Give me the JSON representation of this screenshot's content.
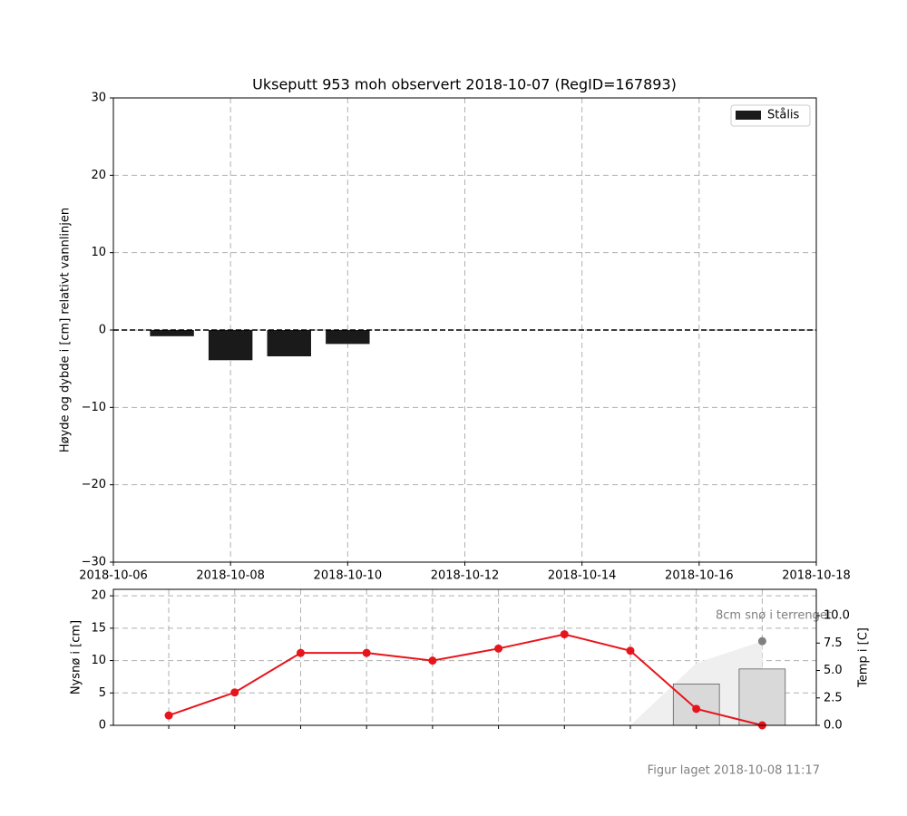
{
  "chart_data": [
    {
      "type": "bar",
      "title": "Ukseputt 953 moh observert 2018-10-07 (RegID=167893)",
      "ylabel": "Høyde og dybde i [cm] relativt vannlinjen",
      "x": [
        "2018-10-07",
        "2018-10-08",
        "2018-10-09",
        "2018-10-10"
      ],
      "xlim": [
        "2018-10-06",
        "2018-10-18"
      ],
      "xticks": [
        "2018-10-06",
        "2018-10-08",
        "2018-10-10",
        "2018-10-12",
        "2018-10-14",
        "2018-10-16",
        "2018-10-18"
      ],
      "ylim": [
        -30,
        30
      ],
      "yticks": [
        {
          "value": -30,
          "label": "−30"
        },
        {
          "value": -20,
          "label": "−20"
        },
        {
          "value": -10,
          "label": "−10"
        },
        0,
        10,
        20,
        30
      ],
      "grid": true,
      "legend": "upper right",
      "series": [
        {
          "name": "Stålis",
          "color": "#1a1a1a",
          "values": [
            -0.8,
            -3.9,
            -3.4,
            -1.8
          ]
        }
      ]
    },
    {
      "type": "combo",
      "ylabel": "Nysnø i [cm]",
      "y2label": "Temp i [C]",
      "annotation": "8cm snø i terrenget",
      "categories": [
        null,
        null,
        null,
        null,
        null,
        null,
        null,
        null,
        null,
        null
      ],
      "xlim": [
        -0.84,
        9.82
      ],
      "ylim": [
        0,
        21
      ],
      "yticks": [
        0,
        5,
        10,
        15,
        20
      ],
      "y2lim": [
        0,
        12.4
      ],
      "y2ticks": [
        {
          "value": 0,
          "label": "0.0"
        },
        {
          "value": 2.5,
          "label": "2.5"
        },
        {
          "value": 5,
          "label": "5.0"
        },
        {
          "value": 7.5,
          "label": "7.5"
        },
        {
          "value": 10,
          "label": "10.0"
        }
      ],
      "grid": true,
      "series": [
        {
          "type": "area",
          "color": "#efefef",
          "values": [
            null,
            null,
            null,
            null,
            null,
            null,
            null,
            0,
            9.6,
            13
          ]
        },
        {
          "type": "bar",
          "color": "#d9d9d9",
          "values": [
            null,
            null,
            null,
            null,
            null,
            null,
            null,
            null,
            6.4,
            8.7
          ]
        },
        {
          "type": "line",
          "axis": "y2",
          "color": "#e8141b",
          "values": [
            0.9,
            3.0,
            6.6,
            6.6,
            5.9,
            7.0,
            8.3,
            6.8,
            1.5,
            0
          ]
        },
        {
          "type": "scatter",
          "color": "#808080",
          "values": [
            null,
            null,
            null,
            null,
            null,
            null,
            null,
            null,
            null,
            13
          ]
        }
      ]
    }
  ],
  "footer": "Figur laget 2018-10-08 11:17"
}
